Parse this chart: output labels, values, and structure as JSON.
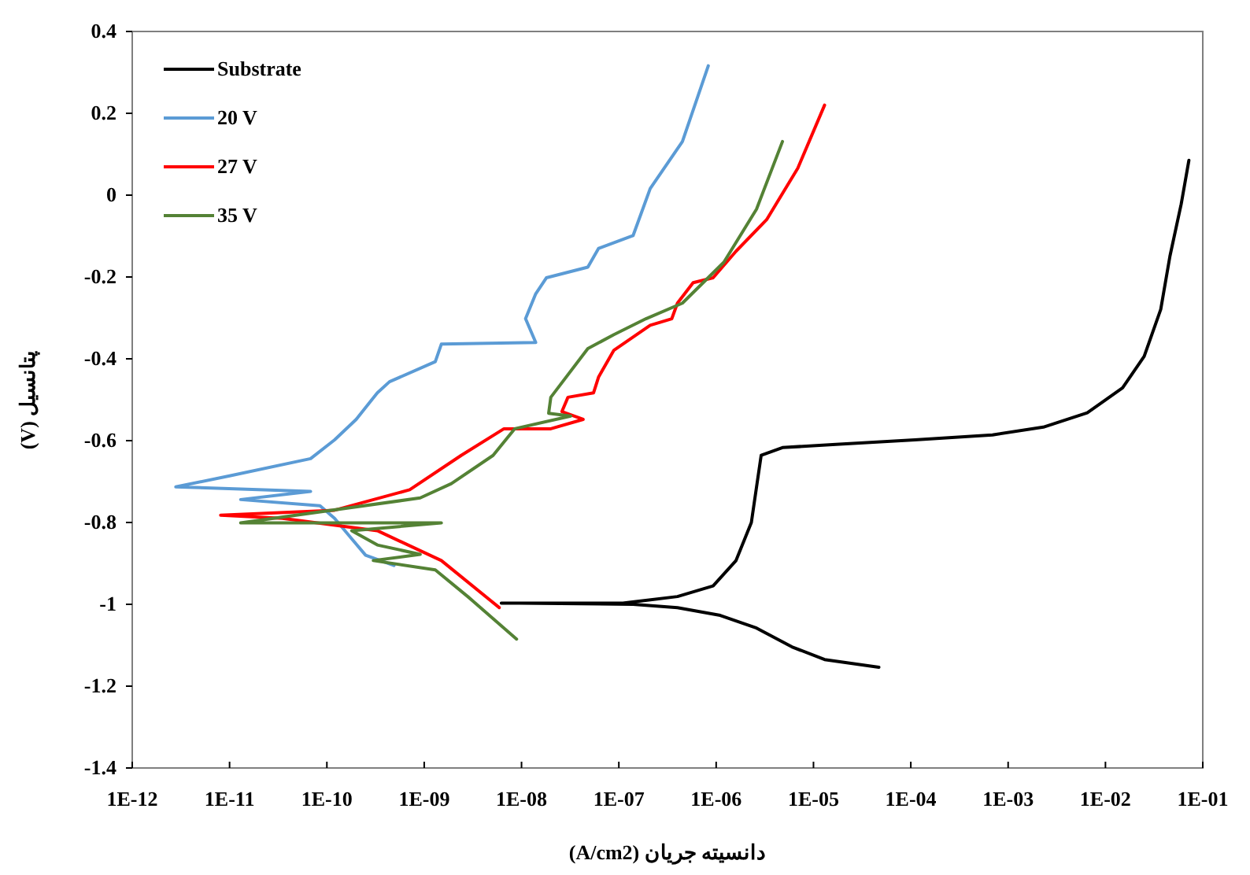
{
  "chart_data": {
    "type": "line",
    "xlabel": "دانسیته جریان (A/cm2)",
    "ylabel": "پتانسیل (V)",
    "log": "x",
    "grid": false,
    "legend": "top left",
    "marker": "none",
    "line_style": "solid",
    "xlim": [
      1e-12,
      0.1
    ],
    "ylim": [
      -1.4,
      0.4
    ],
    "xticks": [
      {
        "value": 1e-12,
        "label": "1E-12"
      },
      {
        "value": 1e-11,
        "label": "1E-11"
      },
      {
        "value": 1e-10,
        "label": "1E-10"
      },
      {
        "value": 1e-09,
        "label": "1E-09"
      },
      {
        "value": 1e-08,
        "label": "1E-08"
      },
      {
        "value": 1e-07,
        "label": "1E-07"
      },
      {
        "value": 1e-06,
        "label": "1E-06"
      },
      {
        "value": 1e-05,
        "label": "1E-05"
      },
      {
        "value": 0.0001,
        "label": "1E-04"
      },
      {
        "value": 0.001,
        "label": "1E-03"
      },
      {
        "value": 0.01,
        "label": "1E-02"
      },
      {
        "value": 0.1,
        "label": "1E-01"
      }
    ],
    "yticks": [
      0.4,
      0.2,
      0,
      -0.2,
      -0.4,
      -0.6,
      -0.8,
      -1,
      -1.2,
      -1.4
    ],
    "series": [
      {
        "name": "Substrate",
        "color": "#000000",
        "x": [
          4.7e-05,
          1.3e-05,
          6e-06,
          2.6e-06,
          1.1e-06,
          4e-07,
          1.4e-07,
          9.5e-09,
          6.2e-09,
          1.1e-07,
          4e-07,
          9.3e-07,
          1.6e-06,
          2.3e-06,
          2.6e-06,
          2.9e-06,
          4.8e-06,
          1.7e-05,
          0.00011,
          0.00069,
          0.0023,
          0.0065,
          0.015,
          0.025,
          0.037,
          0.046,
          0.06,
          0.072
        ],
        "values": [
          -1.154,
          -1.135,
          -1.104,
          -1.058,
          -1.027,
          -1.008,
          -1.0,
          -0.997,
          -0.997,
          -0.997,
          -0.981,
          -0.955,
          -0.893,
          -0.8,
          -0.713,
          -0.636,
          -0.617,
          -0.609,
          -0.598,
          -0.586,
          -0.567,
          -0.532,
          -0.471,
          -0.394,
          -0.279,
          -0.149,
          -0.022,
          0.085
        ]
      },
      {
        "name": "20 V",
        "color": "#5b9bd5",
        "x": [
          4.9e-10,
          2.5e-10,
          1.8e-10,
          1.2e-10,
          8.5e-11,
          1.3e-11,
          6.8e-11,
          2.8e-12,
          1e-11,
          6.8e-11,
          1.2e-10,
          2e-10,
          3.3e-10,
          4.4e-10,
          1.3e-09,
          1.5e-09,
          1.4e-08,
          1.1e-08,
          1.4e-08,
          1.8e-08,
          4.8e-08,
          6.2e-08,
          1.4e-07,
          2.1e-07,
          4.5e-07,
          8.3e-07
        ],
        "values": [
          -0.905,
          -0.88,
          -0.84,
          -0.79,
          -0.759,
          -0.744,
          -0.724,
          -0.713,
          -0.686,
          -0.644,
          -0.598,
          -0.548,
          -0.483,
          -0.456,
          -0.407,
          -0.364,
          -0.36,
          -0.302,
          -0.241,
          -0.202,
          -0.176,
          -0.13,
          -0.099,
          0.016,
          0.131,
          0.316
        ]
      },
      {
        "name": "27 V",
        "color": "#ff0000",
        "x": [
          5.9e-09,
          1.5e-09,
          3.3e-10,
          3.5e-11,
          8.1e-12,
          1.2e-10,
          7.1e-10,
          2.4e-09,
          6.6e-09,
          2e-08,
          4.3e-08,
          2.6e-08,
          3e-08,
          5.5e-08,
          6.2e-08,
          8.9e-08,
          2.1e-07,
          3.5e-07,
          4e-07,
          5.8e-07,
          9.3e-07,
          1.6e-06,
          3.3e-06,
          6.9e-06,
          1.3e-05
        ],
        "values": [
          -1.008,
          -0.893,
          -0.82,
          -0.79,
          -0.782,
          -0.77,
          -0.72,
          -0.636,
          -0.571,
          -0.571,
          -0.548,
          -0.529,
          -0.494,
          -0.483,
          -0.444,
          -0.379,
          -0.318,
          -0.302,
          -0.264,
          -0.214,
          -0.202,
          -0.137,
          -0.06,
          0.066,
          0.22
        ]
      },
      {
        "name": "35 V",
        "color": "#548235",
        "x": [
          8.9e-09,
          2.8e-09,
          1.3e-09,
          3e-10,
          9.1e-10,
          3.3e-10,
          1.8e-10,
          1.5e-09,
          1.3e-11,
          9.1e-10,
          1.9e-09,
          5.1e-09,
          8.5e-09,
          3.2e-08,
          1.9e-08,
          2e-08,
          4.8e-08,
          8.9e-08,
          1.9e-07,
          4.5e-07,
          1.2e-06,
          2.6e-06,
          4.8e-06
        ],
        "values": [
          -1.085,
          -0.981,
          -0.916,
          -0.893,
          -0.878,
          -0.855,
          -0.82,
          -0.801,
          -0.801,
          -0.74,
          -0.705,
          -0.636,
          -0.571,
          -0.54,
          -0.533,
          -0.494,
          -0.375,
          -0.341,
          -0.302,
          -0.264,
          -0.164,
          -0.034,
          0.131
        ]
      }
    ]
  }
}
